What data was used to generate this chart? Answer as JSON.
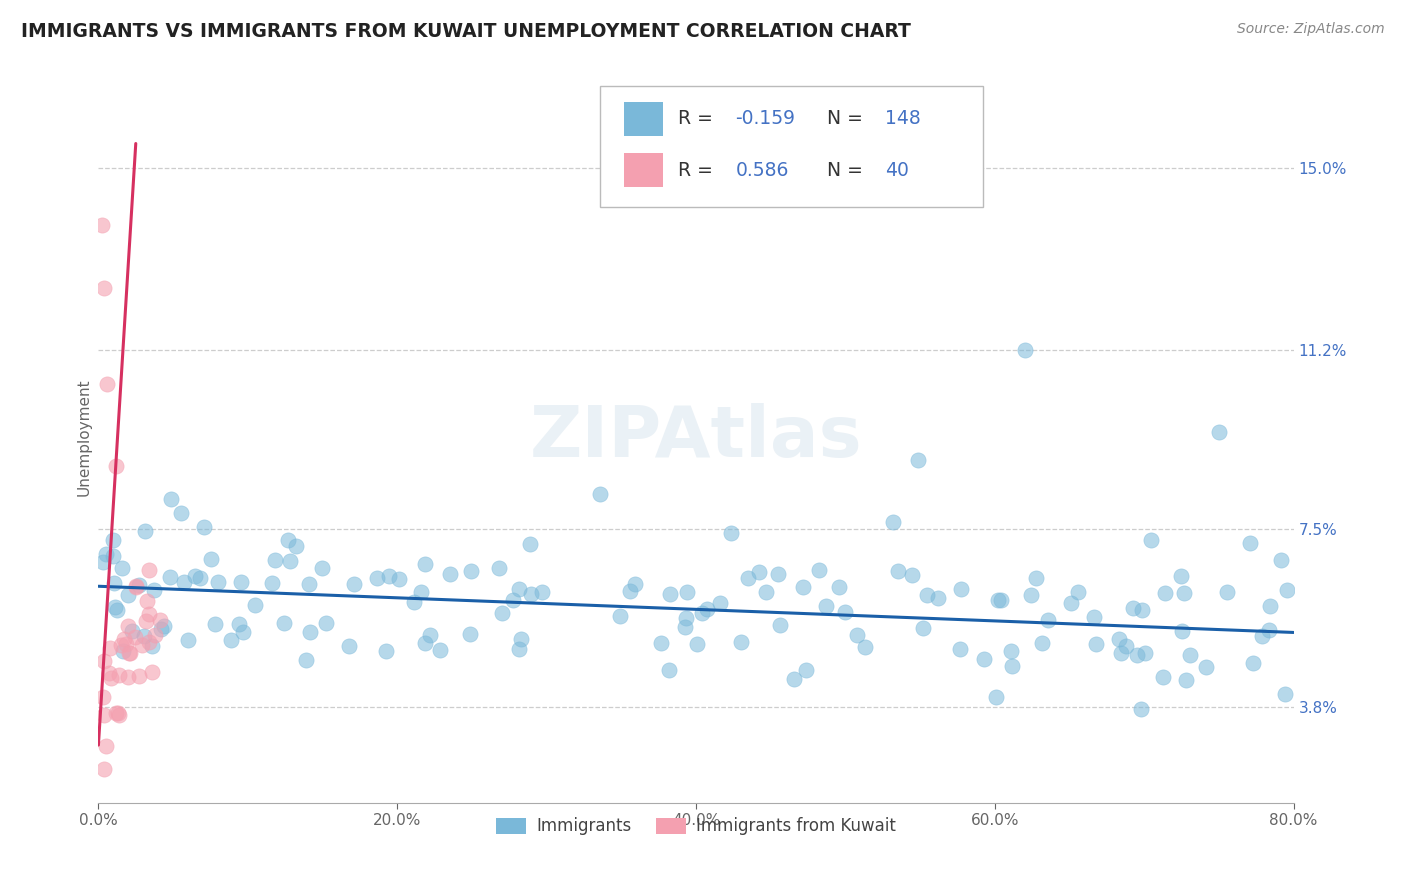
{
  "title": "IMMIGRANTS VS IMMIGRANTS FROM KUWAIT UNEMPLOYMENT CORRELATION CHART",
  "source": "Source: ZipAtlas.com",
  "ylabel": "Unemployment",
  "xlabel_ticks": [
    "0.0%",
    "20.0%",
    "40.0%",
    "60.0%",
    "80.0%"
  ],
  "xlabel_vals": [
    0.0,
    20.0,
    40.0,
    60.0,
    80.0
  ],
  "ylabel_ticks": [
    "3.8%",
    "7.5%",
    "11.2%",
    "15.0%"
  ],
  "ylabel_vals": [
    3.8,
    7.5,
    11.2,
    15.0
  ],
  "xlim": [
    0.0,
    80.0
  ],
  "ylim": [
    1.8,
    17.0
  ],
  "immigrants_color": "#7ab8d9",
  "kuwait_color": "#f4a0b0",
  "trend_blue": "#1a5fa8",
  "trend_pink": "#d63060",
  "R_immigrants": -0.159,
  "N_immigrants": 148,
  "R_kuwait": 0.586,
  "N_kuwait": 40,
  "background_color": "#ffffff",
  "grid_color": "#c8c8c8",
  "watermark": "ZIPAtlas",
  "legend_label_immigrants": "Immigrants",
  "legend_label_kuwait": "Immigrants from Kuwait",
  "title_fontsize": 13.5,
  "axis_label_fontsize": 11,
  "tick_fontsize": 11,
  "legend_fontsize": 13,
  "source_fontsize": 10,
  "value_color": "#4472c4",
  "text_color": "#333333"
}
